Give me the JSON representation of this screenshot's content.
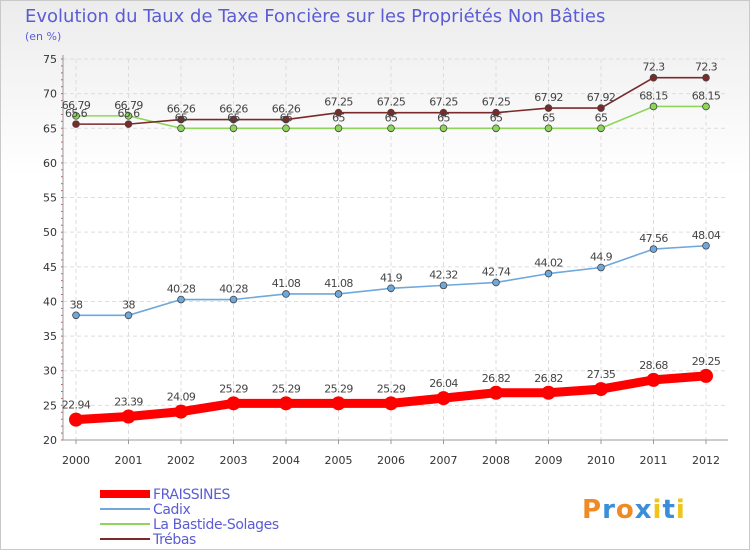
{
  "chart_data": {
    "type": "line",
    "title": "Evolution du Taux de Taxe Foncière sur les Propriétés Non Bâties",
    "subtitle": "(en %)",
    "xlabel": "",
    "ylabel": "",
    "x": [
      "2000",
      "2001",
      "2002",
      "2003",
      "2004",
      "2005",
      "2006",
      "2007",
      "2008",
      "2009",
      "2010",
      "2011",
      "2012"
    ],
    "ylim": [
      20,
      75
    ],
    "yticks": [
      20,
      25,
      30,
      35,
      40,
      45,
      50,
      55,
      60,
      65,
      70,
      75
    ],
    "grid": true,
    "legend_position": "bottom",
    "series": [
      {
        "name": "FRAISSINES",
        "color": "#ff0000",
        "values": [
          22.94,
          23.39,
          24.09,
          25.29,
          25.29,
          25.29,
          25.29,
          26.04,
          26.82,
          26.82,
          27.35,
          28.68,
          29.25
        ],
        "labels": [
          "22.94",
          "23.39",
          "24.09",
          "25.29",
          "25.29",
          "25.29",
          "25.29",
          "26.04",
          "26.82",
          "26.82",
          "27.35",
          "28.68",
          "29.25"
        ]
      },
      {
        "name": "Cadix",
        "color": "#6fa8dc",
        "values": [
          38,
          38,
          40.28,
          40.28,
          41.08,
          41.08,
          41.9,
          42.32,
          42.74,
          44.02,
          44.9,
          47.56,
          48.04
        ],
        "labels": [
          "38",
          "38",
          "40.28",
          "40.28",
          "41.08",
          "41.08",
          "41.9",
          "42.32",
          "42.74",
          "44.02",
          "44.9",
          "47.56",
          "48.04"
        ]
      },
      {
        "name": "La Bastide-Solages",
        "color": "#8ed65a",
        "values": [
          66.79,
          66.79,
          65,
          65,
          65,
          65,
          65,
          65,
          65,
          65,
          65,
          68.15,
          68.15
        ],
        "labels": [
          "66.79",
          "66.79",
          "65",
          "65",
          "65",
          "65",
          "65",
          "65",
          "65",
          "65",
          "65",
          "68.15",
          "68.15"
        ]
      },
      {
        "name": "Trébas",
        "color": "#7a2a2a",
        "values": [
          65.6,
          65.6,
          66.26,
          66.26,
          66.26,
          67.25,
          67.25,
          67.25,
          67.25,
          67.92,
          67.92,
          72.3,
          72.3
        ],
        "labels": [
          "65.6",
          "65.6",
          "66.26",
          "66.26",
          "66.26",
          "67.25",
          "67.25",
          "67.25",
          "67.25",
          "67.92",
          "67.92",
          "72.3",
          "72.3"
        ]
      }
    ]
  },
  "logo": {
    "text": "Proxiti",
    "letters": [
      "P",
      "r",
      "o",
      "x",
      "i",
      "t",
      "i"
    ],
    "letter_colors": [
      "#f08a24",
      "#3a8fd8",
      "#f08a24",
      "#3a8fd8",
      "#f0c419",
      "#3a8fd8",
      "#f0c419"
    ]
  }
}
